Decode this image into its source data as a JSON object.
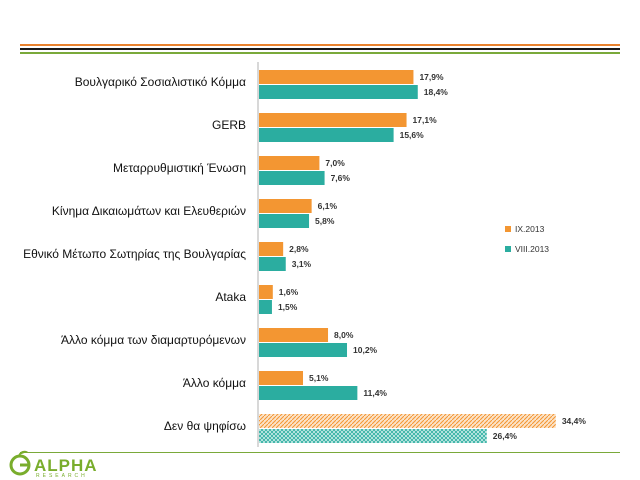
{
  "colors": {
    "series_a": "#f39632",
    "series_b": "#2bada0",
    "stripe_orange": "#e9822e",
    "stripe_dark": "#1a1a1a",
    "stripe_green": "#7aa93a",
    "logo_green": "#79ad2c"
  },
  "logo": {
    "word": "ALPHA",
    "sub": "RESEARCH",
    "icon": "sprout-logo-icon"
  },
  "chart_data": {
    "type": "bar",
    "orientation": "horizontal",
    "categories": [
      "Βουλγαρικό Σοσιαλιστικό Κόμμα",
      "GERB",
      "Μεταρρυθμιστική Ένωση",
      "Κίνημα Δικαιωμάτων και Ελευθεριών",
      "Εθνικό Μέτωπο Σωτηρίας της Βουλγαρίας",
      "Ataka",
      "Άλλο κόμμα των διαμαρτυρόμενων",
      "Άλλο κόμμα",
      "Δεν θα ψηφίσω"
    ],
    "series": [
      {
        "name": "IX.2013",
        "values": [
          17.9,
          17.1,
          7.0,
          6.1,
          2.8,
          1.6,
          8.0,
          5.1,
          34.4
        ],
        "labels": [
          "17,9%",
          "17,1%",
          "7,0%",
          "6,1%",
          "2,8%",
          "1,6%",
          "8,0%",
          "5,1%",
          "34,4%"
        ]
      },
      {
        "name": "VIII.2013",
        "values": [
          18.4,
          15.6,
          7.6,
          5.8,
          3.1,
          1.5,
          10.2,
          11.4,
          26.4
        ],
        "labels": [
          "18,4%",
          "15,6%",
          "7,6%",
          "5,8%",
          "3,1%",
          "1,5%",
          "10,2%",
          "11,4%",
          "26,4%"
        ]
      }
    ],
    "hatched_category": "Δεν θα ψηφίσω",
    "legend_position": "right",
    "xlim": [
      0,
      35
    ],
    "grid": false
  }
}
